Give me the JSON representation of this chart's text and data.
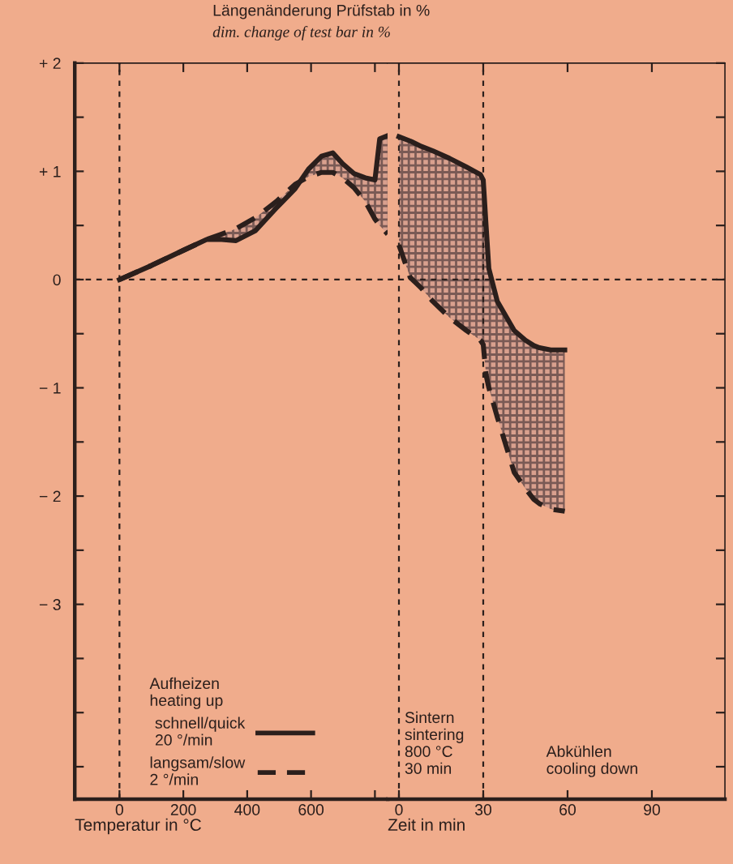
{
  "chart_data": [
    {
      "type": "line",
      "ylabel": "Längenänderung Prüfstab in %\ndim. change of test bar in %",
      "xlabel": "Temperatur in °C",
      "legend_title": "Aufheizen\nheating up",
      "legend": "bottom",
      "x": [
        0,
        100,
        200,
        273,
        320,
        365,
        425,
        491,
        550,
        592,
        633,
        668,
        699,
        734,
        770,
        800,
        815,
        840
      ],
      "series": [
        {
          "name": "schnell/quick\n20 °/min",
          "color": "#2b1f1c",
          "line_style": "solid",
          "values": [
            0,
            0.13,
            0.27,
            0.37,
            0.37,
            0.36,
            0.45,
            0.66,
            0.84,
            1.02,
            1.14,
            1.17,
            1.07,
            0.98,
            0.94,
            0.92,
            1.3,
            1.33
          ],
          "lower": [
            0,
            0.13,
            0.27,
            0.37,
            0.42,
            0.47,
            0.57,
            0.72,
            0.88,
            0.95,
            0.99,
            0.99,
            0.94,
            0.85,
            0.72,
            0.56,
            0.5,
            0.42
          ],
          "upper": [
            0,
            0.13,
            0.27,
            0.37,
            0.37,
            0.36,
            0.45,
            0.66,
            0.84,
            1.02,
            1.14,
            1.17,
            1.07,
            0.98,
            0.94,
            0.92,
            1.3,
            1.33
          ]
        },
        {
          "name": "langsam/slow\n2 °/min",
          "color": "#2b1f1c",
          "line_style": "dashed",
          "values": [
            0,
            0.13,
            0.27,
            0.37,
            0.42,
            0.47,
            0.57,
            0.72,
            0.88,
            0.95,
            0.99,
            0.99,
            0.94,
            0.85,
            0.72,
            0.56,
            0.5,
            0.42
          ]
        }
      ],
      "xlim": [
        -140,
        840
      ],
      "xticks": [
        0,
        200,
        400,
        600,
        {
          "value": 800,
          "label": null
        }
      ],
      "ylim": [
        -4.8,
        2
      ],
      "yticks": [
        {
          "value": 2,
          "label": "+ 2"
        },
        {
          "value": 1.5,
          "label": null
        },
        {
          "value": 1,
          "label": "+ 1"
        },
        {
          "value": 0.5,
          "label": null
        },
        0,
        {
          "value": -0.5,
          "label": null
        },
        {
          "value": -1,
          "label": "− 1"
        },
        {
          "value": -1.5,
          "label": null
        },
        {
          "value": -2,
          "label": "− 2"
        },
        {
          "value": -2.5,
          "label": null
        },
        {
          "value": -3,
          "label": "− 3"
        },
        {
          "value": -3.5,
          "label": null
        },
        {
          "value": -4,
          "label": null
        },
        {
          "value": -4.5,
          "label": null
        }
      ],
      "ref_lines": [
        {
          "axis": "y",
          "value": 0,
          "color": "#2b1f1c",
          "line_style": "dashed"
        },
        {
          "axis": "x",
          "value": 0,
          "color": "#2b1f1c",
          "line_style": "dashed"
        }
      ]
    },
    {
      "type": "line",
      "xlabel": "Zeit in min",
      "tick_labels": "x",
      "annotations": [
        "Sintern\nsintering\n800 °C\n30 min",
        "Abkühlen\ncooling down"
      ],
      "x": [
        0,
        4,
        8,
        12,
        18,
        24,
        29,
        30,
        31,
        32,
        35,
        41,
        45,
        48,
        50,
        54,
        59
      ],
      "series": [
        {
          "color": "#2b1f1c",
          "line_style": "solid",
          "values": [
            1.32,
            1.28,
            1.23,
            1.19,
            1.12,
            1.04,
            0.97,
            0.92,
            0.5,
            0.1,
            -0.2,
            -0.47,
            -0.56,
            -0.61,
            -0.63,
            -0.65,
            -0.65
          ],
          "lower": [
            0.32,
            0.02,
            -0.08,
            -0.2,
            -0.35,
            -0.47,
            -0.56,
            -0.6,
            -0.88,
            -1.0,
            -1.27,
            -1.78,
            -1.93,
            -2.03,
            -2.07,
            -2.12,
            -2.14
          ],
          "upper": [
            1.32,
            1.28,
            1.23,
            1.19,
            1.12,
            1.04,
            0.97,
            0.92,
            0.5,
            0.1,
            -0.2,
            -0.47,
            -0.56,
            -0.61,
            -0.63,
            -0.65,
            -0.65
          ]
        },
        {
          "color": "#2b1f1c",
          "line_style": "dashed",
          "values": [
            0.32,
            0.02,
            -0.08,
            -0.2,
            -0.35,
            -0.47,
            -0.56,
            -0.6,
            -0.88,
            -1.0,
            -1.27,
            -1.78,
            -1.93,
            -2.03,
            -2.07,
            -2.12,
            -2.14
          ]
        }
      ],
      "xlim": [
        -4,
        116
      ],
      "xticks": [
        0,
        30,
        60,
        90
      ],
      "ylim": [
        -4.8,
        2
      ],
      "yticks": [
        {
          "value": 2,
          "label": null
        },
        {
          "value": 1.5,
          "label": null
        },
        {
          "value": 1,
          "label": null
        },
        {
          "value": 0.5,
          "label": null
        },
        {
          "value": 0,
          "label": null
        },
        {
          "value": -0.5,
          "label": null
        },
        {
          "value": -1,
          "label": null
        },
        {
          "value": -1.5,
          "label": null
        },
        {
          "value": -2,
          "label": null
        },
        {
          "value": -2.5,
          "label": null
        },
        {
          "value": -3,
          "label": null
        },
        {
          "value": -3.5,
          "label": null
        },
        {
          "value": -4,
          "label": null
        },
        {
          "value": -4.5,
          "label": null
        }
      ],
      "ref_lines": [
        {
          "axis": "y",
          "value": 0,
          "color": "#2b1f1c",
          "line_style": "dashed"
        },
        {
          "axis": "x",
          "value": 0,
          "color": "#2b1f1c",
          "line_style": "dashed"
        },
        {
          "axis": "x",
          "value": 30,
          "color": "#2b1f1c",
          "line_style": "dashed"
        }
      ]
    }
  ]
}
